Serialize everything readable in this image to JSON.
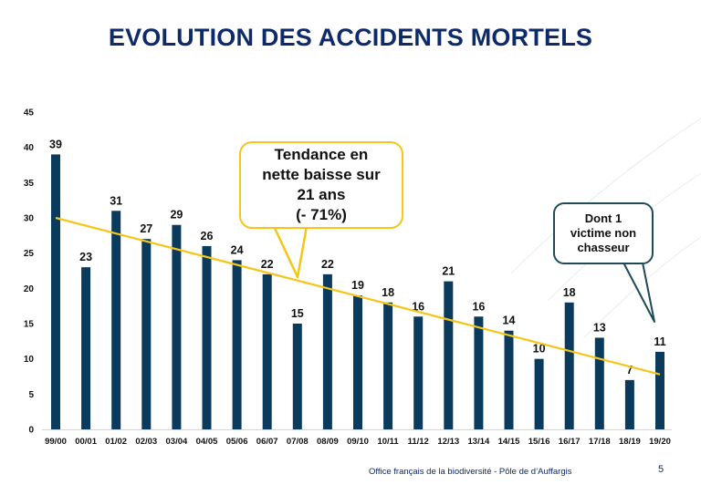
{
  "slide": {
    "title": "EVOLUTION DES ACCIDENTS MORTELS",
    "footer": "Office français de la biodiversité  -  Pôle de d’Auffargis",
    "page_number": "5"
  },
  "colors": {
    "bar": "#0b3b5c",
    "trend": "#f5c518",
    "title": "#0d2a6b"
  },
  "chart_data": {
    "type": "bar",
    "title": "",
    "xlabel": "",
    "ylabel": "",
    "ylim": [
      0,
      45
    ],
    "yticks": [
      0,
      5,
      10,
      15,
      20,
      25,
      30,
      35,
      40,
      45
    ],
    "grid": false,
    "categories": [
      "99/00",
      "00/01",
      "01/02",
      "02/03",
      "03/04",
      "04/05",
      "05/06",
      "06/07",
      "07/08",
      "08/09",
      "09/10",
      "10/11",
      "11/12",
      "12/13",
      "13/14",
      "14/15",
      "15/16",
      "16/17",
      "17/18",
      "18/19",
      "19/20"
    ],
    "values": [
      39,
      23,
      31,
      27,
      29,
      26,
      24,
      22,
      15,
      22,
      19,
      18,
      16,
      21,
      16,
      14,
      10,
      18,
      13,
      7,
      11
    ],
    "trendline": {
      "start": 30,
      "end": 7.8
    },
    "annotations": [
      {
        "text": [
          "Tendance en",
          "nette baisse sur",
          "21 ans",
          "(- 71%)"
        ],
        "points_to": "07/08"
      },
      {
        "text": [
          "Dont 1",
          "victime non",
          "chasseur"
        ],
        "points_to": "19/20"
      }
    ]
  }
}
